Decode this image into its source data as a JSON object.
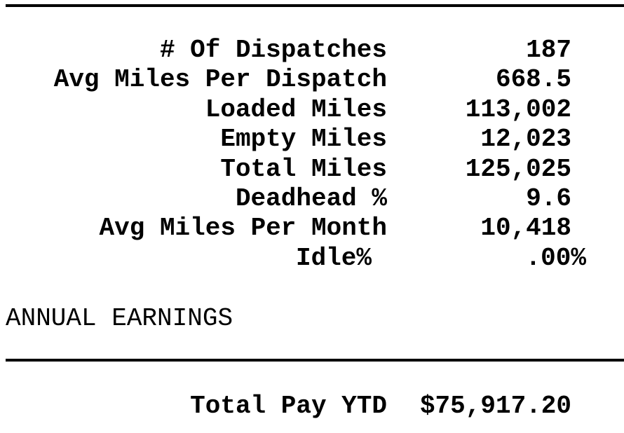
{
  "stats": [
    {
      "label": "# Of Dispatches",
      "value": "187"
    },
    {
      "label": "Avg Miles Per Dispatch",
      "value": "668.5"
    },
    {
      "label": "Loaded Miles",
      "value": "113,002"
    },
    {
      "label": "Empty Miles",
      "value": "12,023"
    },
    {
      "label": "Total Miles",
      "value": "125,025"
    },
    {
      "label": "Deadhead %",
      "value": "9.6"
    },
    {
      "label": "Avg Miles Per Month",
      "value": "10,418"
    },
    {
      "label": "Idle%",
      "value": ".00%"
    }
  ],
  "section": {
    "title": "ANNUAL EARNINGS"
  },
  "total": {
    "label": "Total Pay YTD",
    "value": "$75,917.20"
  }
}
